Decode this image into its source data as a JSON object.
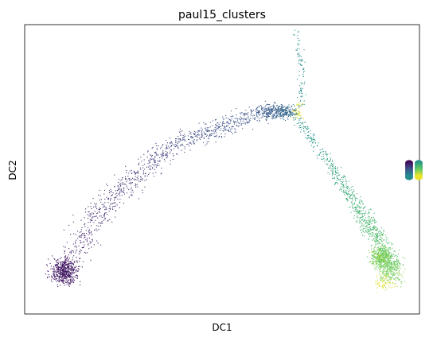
{
  "chart_data": {
    "type": "scatter",
    "title": "paul15_clusters",
    "xlabel": "DC1",
    "ylabel": "DC2",
    "x_ticks": false,
    "y_ticks": false,
    "grid": false,
    "legend": "right",
    "colormap": "viridis",
    "colormap_stops": [
      "#440154",
      "#3b528b",
      "#21918c",
      "#5ec962",
      "#fde725"
    ],
    "trajectory": {
      "description": "points along a curved arc and two branches",
      "arc_samples": [
        {
          "x": 0.08,
          "y": 0.12
        },
        {
          "x": 0.2,
          "y": 0.38
        },
        {
          "x": 0.38,
          "y": 0.59
        },
        {
          "x": 0.6,
          "y": 0.7
        },
        {
          "x": 0.68,
          "y": 0.7
        }
      ],
      "branch_down_samples": [
        {
          "x": 0.68,
          "y": 0.7
        },
        {
          "x": 0.78,
          "y": 0.5
        },
        {
          "x": 0.86,
          "y": 0.34
        },
        {
          "x": 0.92,
          "y": 0.2
        },
        {
          "x": 0.93,
          "y": 0.13
        }
      ],
      "branch_up_samples": [
        {
          "x": 0.7,
          "y": 0.72
        },
        {
          "x": 0.7,
          "y": 0.85
        },
        {
          "x": 0.69,
          "y": 0.98
        }
      ]
    }
  }
}
